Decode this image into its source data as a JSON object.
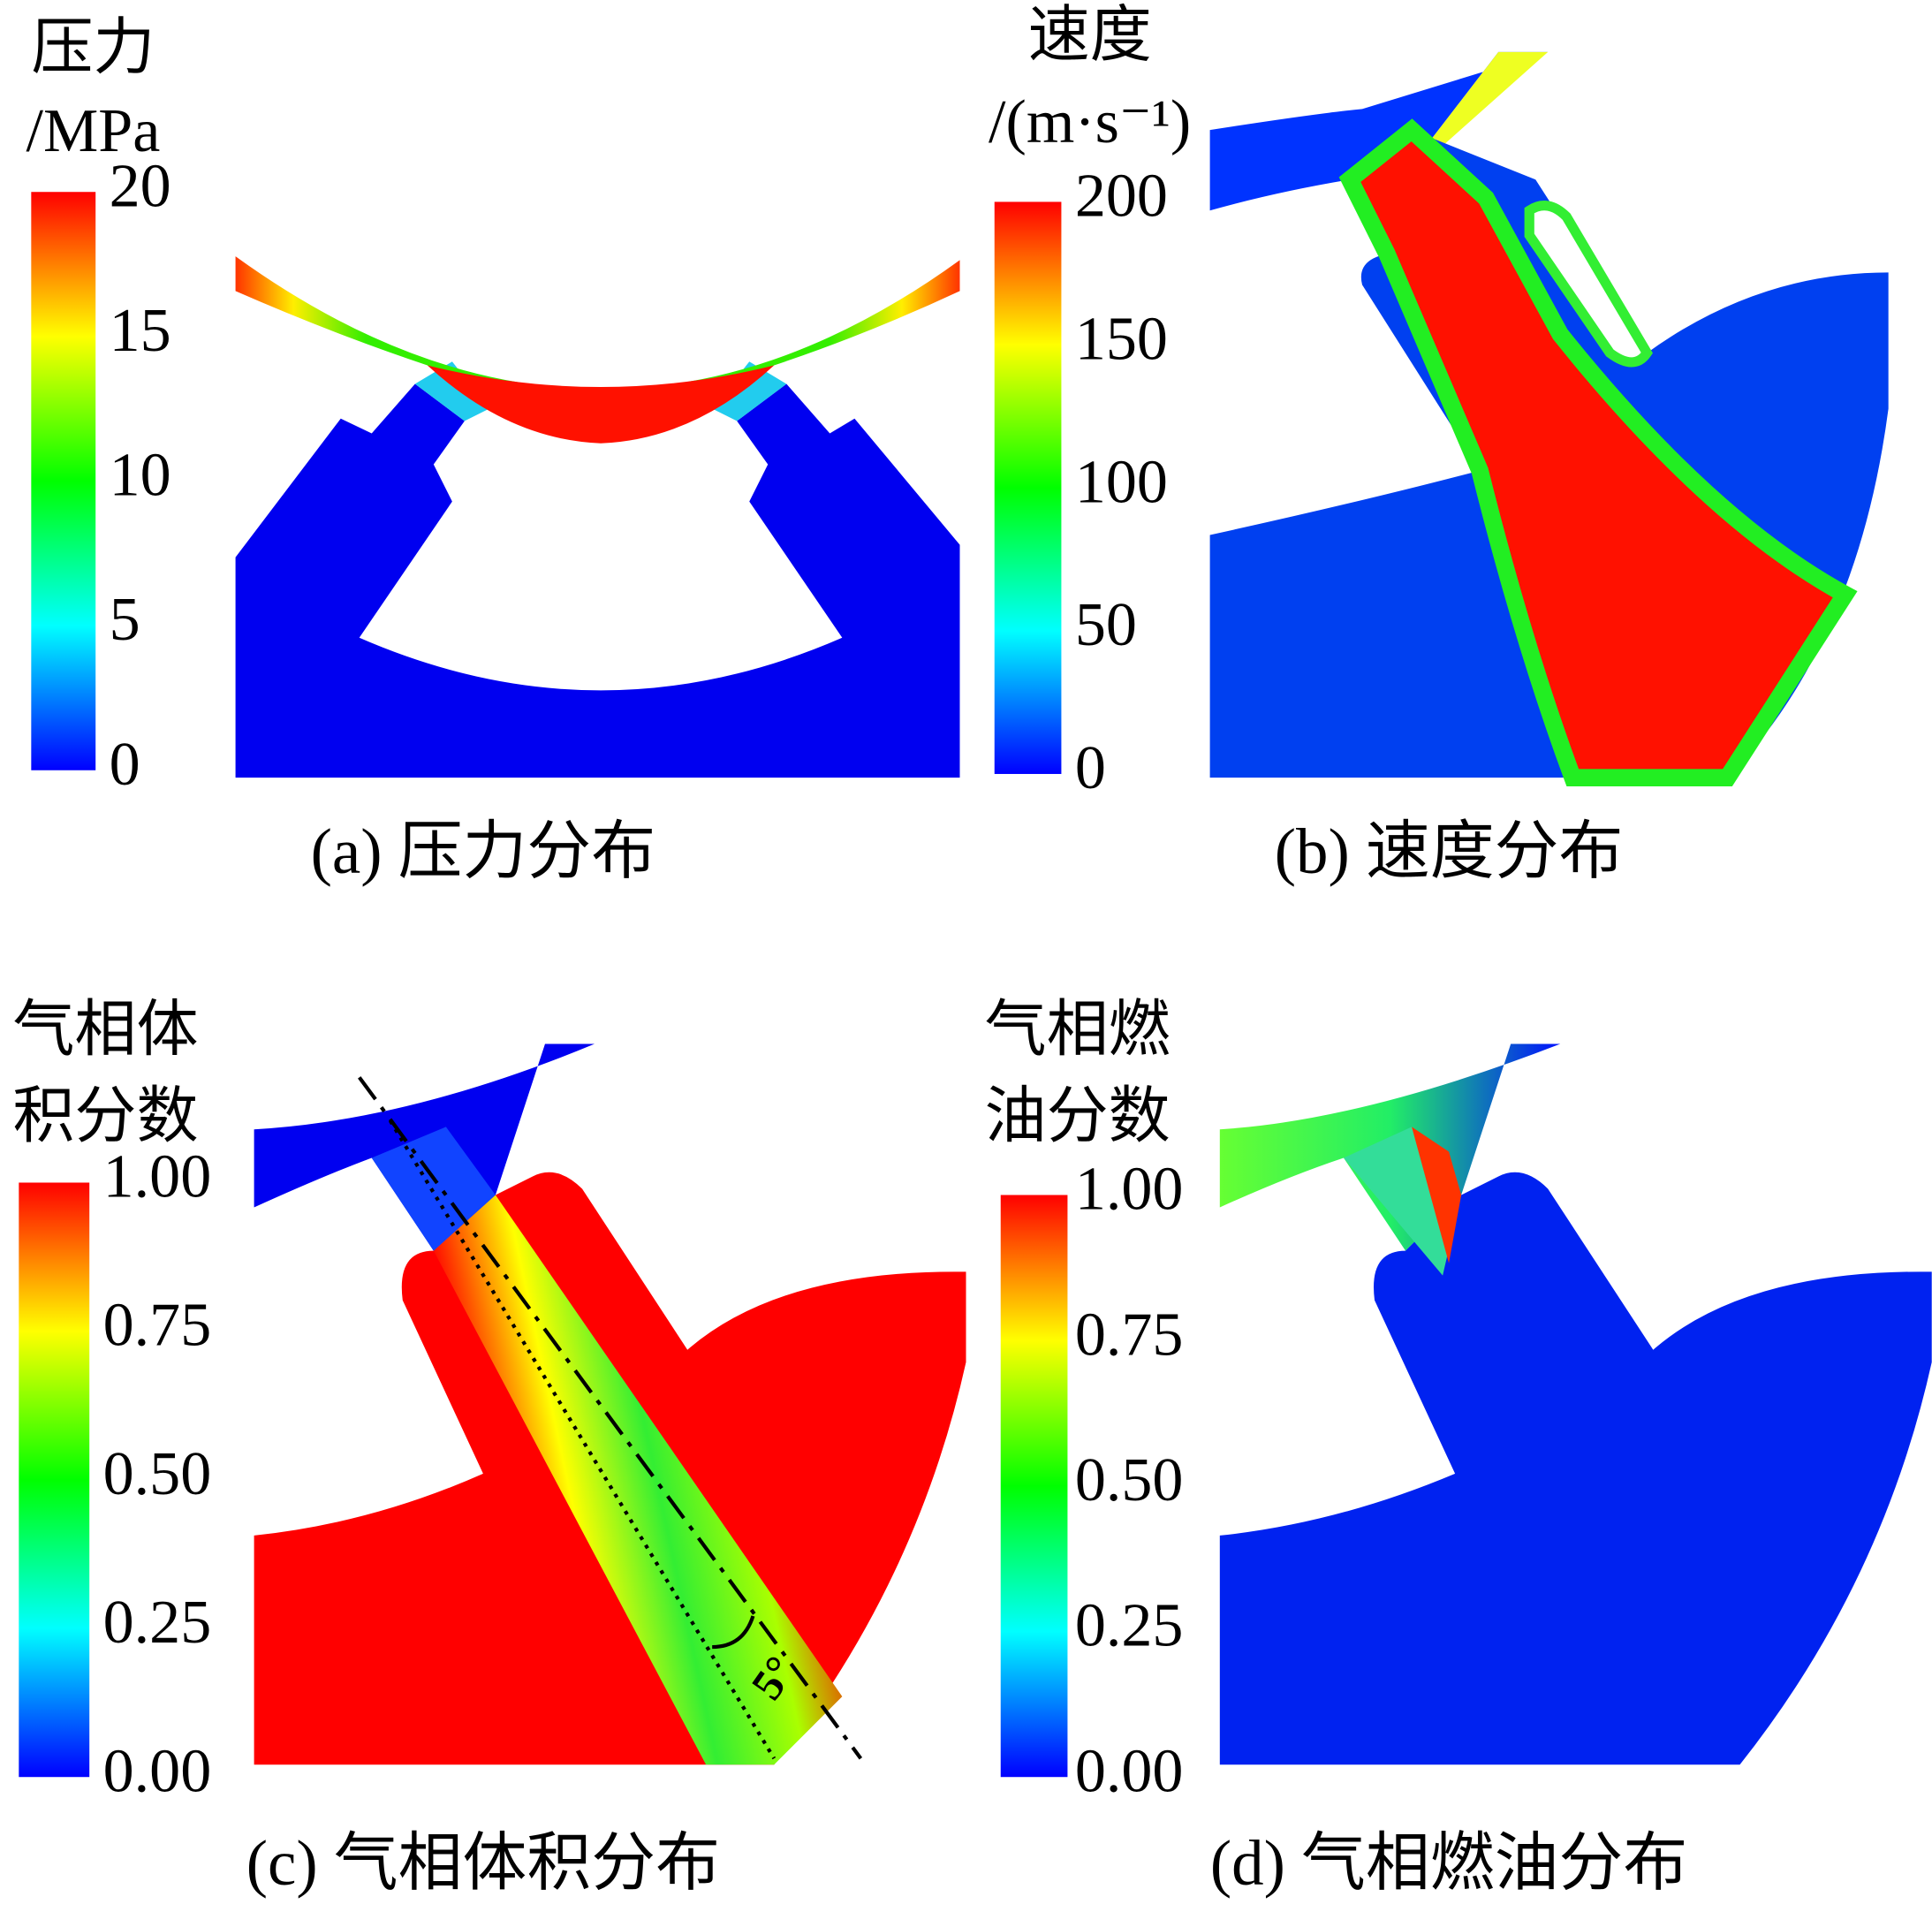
{
  "panels": [
    {
      "legend_title": [
        "压力",
        "/MPa"
      ],
      "ticks": [
        "20",
        "15",
        "10",
        "5",
        "0"
      ],
      "caption": "(a) 压力分布"
    },
    {
      "legend_title": [
        "速度",
        "/(m·s⁻¹)"
      ],
      "ticks": [
        "200",
        "150",
        "100",
        "50",
        "0"
      ],
      "caption": "(b) 速度分布"
    },
    {
      "legend_title": [
        "气相体",
        "积分数"
      ],
      "ticks": [
        "1.00",
        "0.75",
        "0.50",
        "0.25",
        "0.00"
      ],
      "caption": "(c) 气相体积分布",
      "annotation": "5°"
    },
    {
      "legend_title": [
        "气相燃",
        "油分数"
      ],
      "ticks": [
        "1.00",
        "0.75",
        "0.50",
        "0.25",
        "0.00"
      ],
      "caption": "(d) 气相燃油分布"
    }
  ]
}
